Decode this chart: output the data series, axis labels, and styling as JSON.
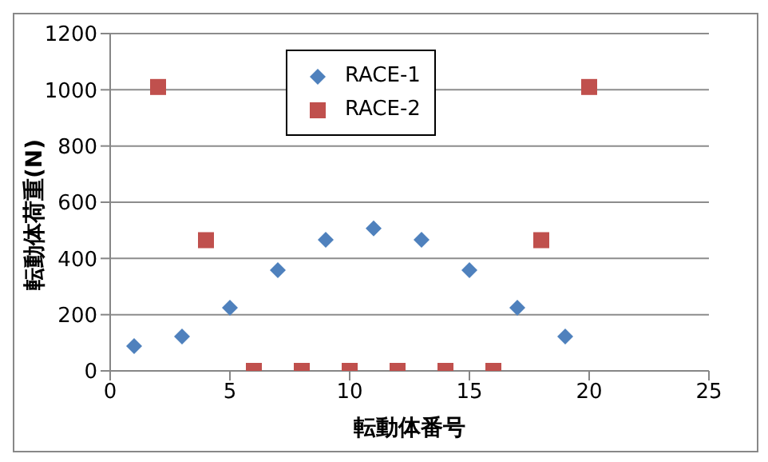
{
  "chart_data": {
    "type": "scatter",
    "xlabel": "転動体番号",
    "ylabel": "転動体荷重(N)",
    "xlim": [
      0,
      25
    ],
    "xticks": [
      0,
      5,
      10,
      15,
      20,
      25
    ],
    "ylim": [
      0,
      1200
    ],
    "yticks": [
      0,
      200,
      400,
      600,
      800,
      1000,
      1200
    ],
    "grid": "y",
    "legend": "top",
    "series": [
      {
        "name": "RACE-1",
        "color": "#4f81bd",
        "marker": "diamond",
        "x": [
          1,
          3,
          5,
          7,
          9,
          11,
          13,
          15,
          17,
          19
        ],
        "values": [
          88,
          122,
          225,
          358,
          466,
          507,
          466,
          358,
          225,
          122
        ]
      },
      {
        "name": "RACE-2",
        "color": "#c0504d",
        "marker": "square",
        "x": [
          2,
          4,
          6,
          8,
          10,
          12,
          14,
          16,
          18,
          20
        ],
        "values": [
          1010,
          465,
          0,
          0,
          0,
          0,
          0,
          0,
          465,
          1010
        ]
      }
    ]
  }
}
